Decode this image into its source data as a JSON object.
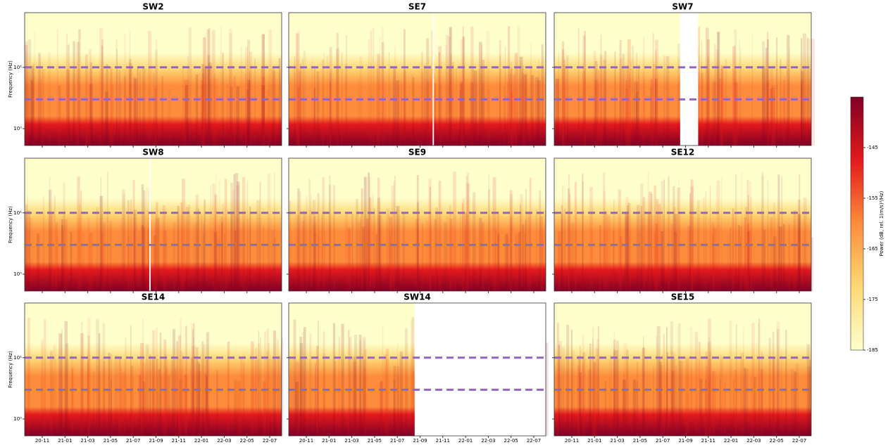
{
  "chart_data": {
    "type": "spectrogram",
    "panels": [
      {
        "title": "SW2"
      },
      {
        "title": "SE7"
      },
      {
        "title": "SW7"
      },
      {
        "title": "SW8"
      },
      {
        "title": "SE9"
      },
      {
        "title": "SE12"
      },
      {
        "title": "SE14"
      },
      {
        "title": "SW14"
      },
      {
        "title": "SE15"
      }
    ],
    "ylabel": "Frequency (Hz)",
    "yscale": "log",
    "ylim": [
      0.53,
      78
    ],
    "yticks": [
      {
        "value": 1,
        "label": "10⁰"
      },
      {
        "value": 10,
        "label": "10¹"
      }
    ],
    "hlines": [
      10,
      3
    ],
    "hline_color": "#9467bd",
    "xticks": [
      "20-11",
      "21-01",
      "21-03",
      "21-05",
      "21-07",
      "21-09",
      "21-11",
      "22-01",
      "22-03",
      "22-05",
      "22-07"
    ],
    "colorbar": {
      "label": "Power (dB, rel. 1(m/s)²/Hz)",
      "clim": [
        -185,
        -135
      ],
      "ticks": [
        -145,
        -155,
        -165,
        -175,
        -185
      ],
      "colors": [
        "#ffffcc",
        "#fed976",
        "#fd8d3c",
        "#e31a1c",
        "#800026"
      ]
    }
  }
}
